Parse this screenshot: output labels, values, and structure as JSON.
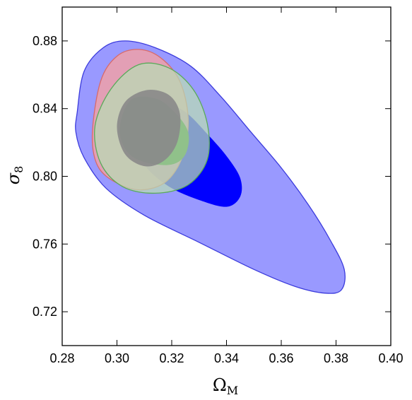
{
  "chart_data": {
    "type": "contour",
    "title": "",
    "xlabel": "Ω",
    "xlabel_sub": "M",
    "ylabel": "σ",
    "ylabel_sub": "8",
    "xlim": [
      0.28,
      0.4
    ],
    "ylim": [
      0.7,
      0.9
    ],
    "x_ticks": [
      "0.28",
      "0.30",
      "0.32",
      "0.34",
      "0.36",
      "0.38",
      "0.40"
    ],
    "y_ticks": [
      "0.72",
      "0.76",
      "0.80",
      "0.84",
      "0.88"
    ],
    "grid": false,
    "legend": "none",
    "series": [
      {
        "color_outer": "#9999ff",
        "color_inner": "#0000ff",
        "stroke": "#3b3bdc",
        "outer": [
          [
            0.2855,
            0.838
          ],
          [
            0.288,
            0.862
          ],
          [
            0.295,
            0.876
          ],
          [
            0.303,
            0.88
          ],
          [
            0.314,
            0.876
          ],
          [
            0.327,
            0.865
          ],
          [
            0.338,
            0.847
          ],
          [
            0.349,
            0.826
          ],
          [
            0.36,
            0.805
          ],
          [
            0.37,
            0.783
          ],
          [
            0.378,
            0.762
          ],
          [
            0.383,
            0.745
          ],
          [
            0.382,
            0.733
          ],
          [
            0.376,
            0.731
          ],
          [
            0.365,
            0.735
          ],
          [
            0.35,
            0.745
          ],
          [
            0.33,
            0.761
          ],
          [
            0.31,
            0.777
          ],
          [
            0.296,
            0.793
          ],
          [
            0.288,
            0.811
          ],
          [
            0.285,
            0.826
          ]
        ],
        "inner": [
          [
            0.306,
            0.833
          ],
          [
            0.31,
            0.844
          ],
          [
            0.317,
            0.844
          ],
          [
            0.325,
            0.838
          ],
          [
            0.333,
            0.825
          ],
          [
            0.34,
            0.812
          ],
          [
            0.345,
            0.799
          ],
          [
            0.345,
            0.788
          ],
          [
            0.34,
            0.782
          ],
          [
            0.33,
            0.786
          ],
          [
            0.32,
            0.793
          ],
          [
            0.312,
            0.803
          ],
          [
            0.307,
            0.815
          ],
          [
            0.305,
            0.825
          ]
        ]
      },
      {
        "color_outer": "#f0a0a8",
        "color_inner": "#2a7a1e",
        "stroke": "#d86a6a",
        "outer": [
          [
            0.291,
            0.825
          ],
          [
            0.294,
            0.856
          ],
          [
            0.3,
            0.871
          ],
          [
            0.308,
            0.875
          ],
          [
            0.316,
            0.87
          ],
          [
            0.323,
            0.856
          ],
          [
            0.326,
            0.834
          ],
          [
            0.324,
            0.812
          ],
          [
            0.318,
            0.797
          ],
          [
            0.309,
            0.792
          ],
          [
            0.3,
            0.796
          ],
          [
            0.293,
            0.806
          ]
        ],
        "inner": [
          [
            0.301,
            0.828
          ],
          [
            0.305,
            0.845
          ],
          [
            0.314,
            0.846
          ],
          [
            0.321,
            0.838
          ],
          [
            0.326,
            0.826
          ],
          [
            0.325,
            0.813
          ],
          [
            0.32,
            0.807
          ],
          [
            0.311,
            0.808
          ],
          [
            0.304,
            0.814
          ]
        ]
      },
      {
        "color_outer": "#b8dcb4",
        "color_inner": "#8a8a8a",
        "stroke": "#5aaa5a",
        "outer": [
          [
            0.292,
            0.83
          ],
          [
            0.298,
            0.852
          ],
          [
            0.308,
            0.866
          ],
          [
            0.319,
            0.864
          ],
          [
            0.328,
            0.851
          ],
          [
            0.333,
            0.831
          ],
          [
            0.333,
            0.81
          ],
          [
            0.326,
            0.795
          ],
          [
            0.314,
            0.79
          ],
          [
            0.302,
            0.794
          ],
          [
            0.294,
            0.808
          ]
        ],
        "inner": [
          [
            0.3,
            0.829
          ],
          [
            0.303,
            0.844
          ],
          [
            0.311,
            0.851
          ],
          [
            0.319,
            0.848
          ],
          [
            0.323,
            0.837
          ],
          [
            0.322,
            0.82
          ],
          [
            0.317,
            0.809
          ],
          [
            0.31,
            0.806
          ],
          [
            0.303,
            0.813
          ]
        ]
      }
    ]
  }
}
